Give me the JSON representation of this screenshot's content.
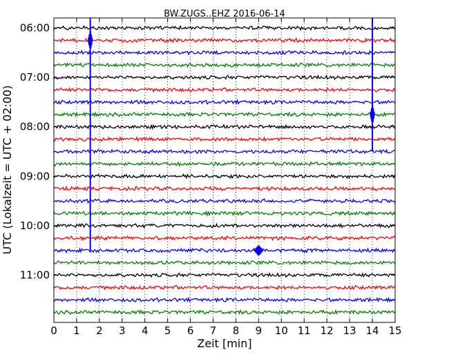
{
  "chart_data": {
    "type": "line",
    "title": "BW.ZUGS..EHZ 2016-06-14",
    "xlabel": "Zeit  [min]",
    "ylabel": "UTC (Lokalzeit = UTC + 02:00)",
    "xlim": [
      0,
      15
    ],
    "x_ticks": [
      "0",
      "1",
      "2",
      "3",
      "4",
      "5",
      "6",
      "7",
      "8",
      "9",
      "10",
      "11",
      "12",
      "13",
      "14",
      "15"
    ],
    "y_ticks": [
      "06:00",
      "07:00",
      "08:00",
      "09:00",
      "10:00",
      "11:00"
    ],
    "grid": "vertical dotted",
    "trace_interval_minutes": 15,
    "trace_colors": [
      "#000000",
      "#ff0000",
      "#0000ff",
      "#008000"
    ],
    "traces": [
      {
        "start": "06:00",
        "color": "#000000"
      },
      {
        "start": "06:15",
        "color": "#ff0000"
      },
      {
        "start": "06:30",
        "color": "#0000ff"
      },
      {
        "start": "06:45",
        "color": "#008000"
      },
      {
        "start": "07:00",
        "color": "#000000"
      },
      {
        "start": "07:15",
        "color": "#ff0000"
      },
      {
        "start": "07:30",
        "color": "#0000ff"
      },
      {
        "start": "07:45",
        "color": "#008000"
      },
      {
        "start": "08:00",
        "color": "#000000"
      },
      {
        "start": "08:15",
        "color": "#ff0000"
      },
      {
        "start": "08:30",
        "color": "#0000ff"
      },
      {
        "start": "08:45",
        "color": "#008000"
      },
      {
        "start": "09:00",
        "color": "#000000"
      },
      {
        "start": "09:15",
        "color": "#ff0000"
      },
      {
        "start": "09:30",
        "color": "#0000ff"
      },
      {
        "start": "09:45",
        "color": "#008000"
      },
      {
        "start": "10:00",
        "color": "#000000"
      },
      {
        "start": "10:15",
        "color": "#ff0000"
      },
      {
        "start": "10:30",
        "color": "#0000ff"
      },
      {
        "start": "10:45",
        "color": "#008000"
      },
      {
        "start": "11:00",
        "color": "#000000"
      },
      {
        "start": "11:15",
        "color": "#ff0000"
      },
      {
        "start": "11:30",
        "color": "#0000ff"
      },
      {
        "start": "11:45",
        "color": "#008000"
      }
    ],
    "events": [
      {
        "trace_start": "06:00",
        "minute": 1.6,
        "color": "#0000ff",
        "extends_to": "10:30"
      },
      {
        "trace_start": "07:30",
        "minute": 14.0,
        "color": "#0000ff",
        "extends_to": "08:30"
      },
      {
        "trace_start": "10:30",
        "minute": 9.0,
        "color": "#0000ff"
      }
    ]
  }
}
